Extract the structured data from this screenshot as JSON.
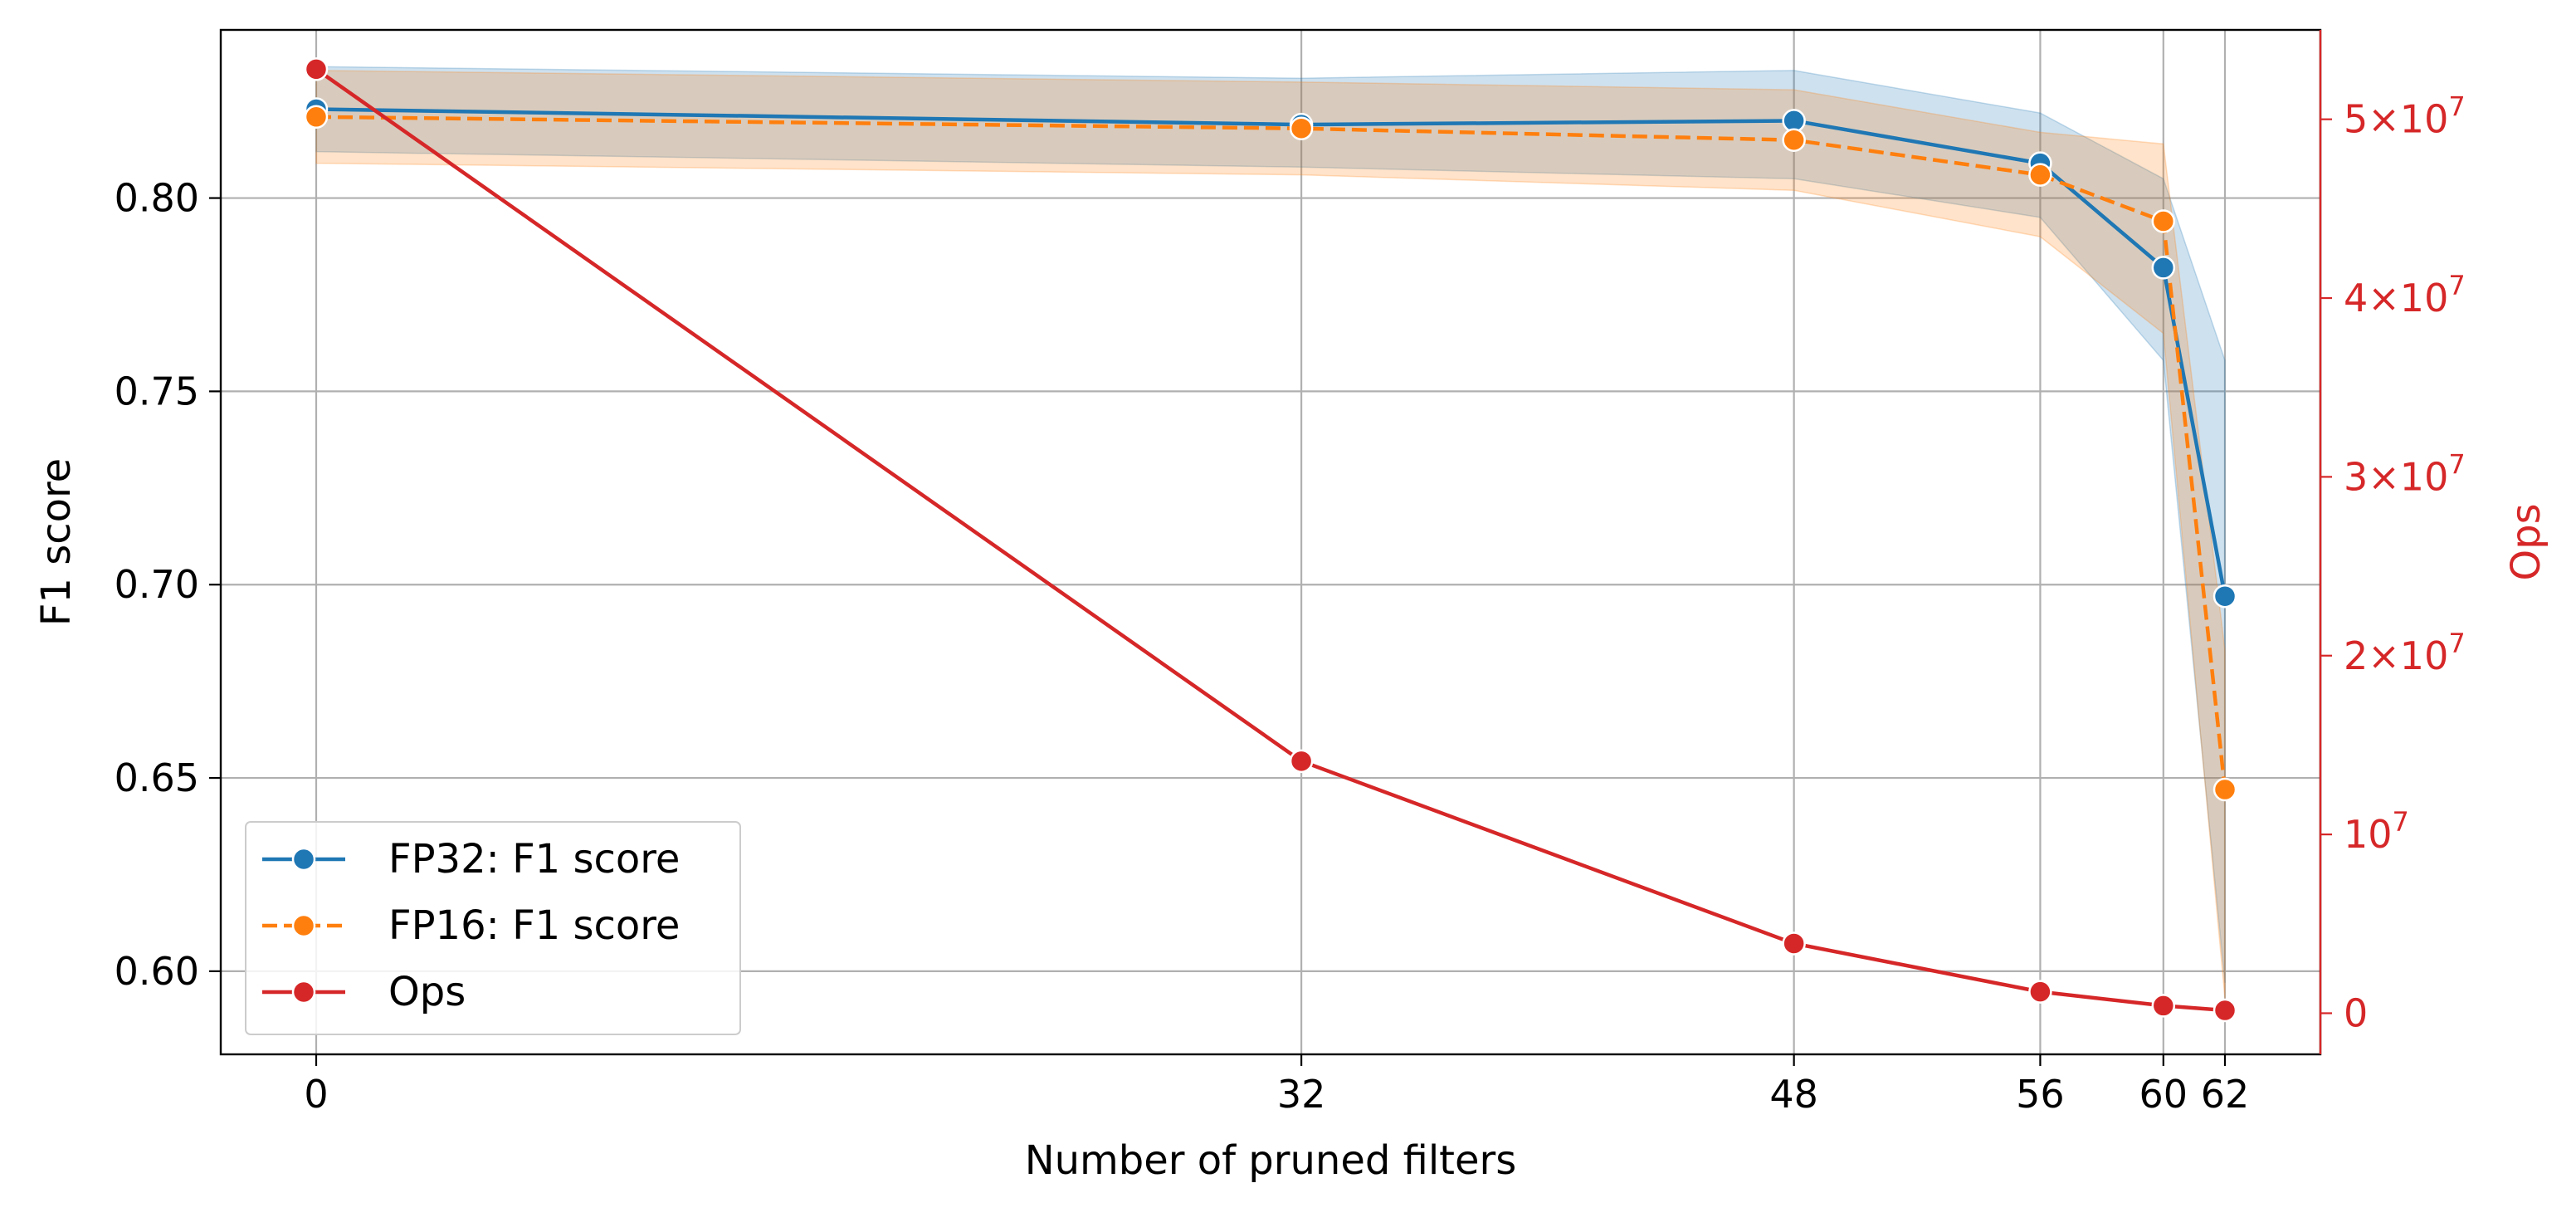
{
  "chart_data": {
    "type": "line",
    "x": [
      0,
      32,
      48,
      56,
      60,
      62
    ],
    "xlabel": "Number of pruned filters",
    "xticks": [
      "0",
      "32",
      "48",
      "56",
      "60",
      "62"
    ],
    "xlim": [
      -3.1,
      65.1
    ],
    "ylabel": "F1 score",
    "ylim": [
      0.5785,
      0.8435
    ],
    "yticks": [
      "0.60",
      "0.65",
      "0.70",
      "0.75",
      "0.80"
    ],
    "ytick_values": [
      0.6,
      0.65,
      0.7,
      0.75,
      0.8
    ],
    "y2label": "Ops",
    "y2lim": [
      -2300000,
      55000000
    ],
    "y2ticks": [
      {
        "value": 0,
        "base": "0",
        "exp": ""
      },
      {
        "value": 10000000,
        "base": "10",
        "exp": "7"
      },
      {
        "value": 20000000,
        "base": "2×10",
        "exp": "7"
      },
      {
        "value": 30000000,
        "base": "3×10",
        "exp": "7"
      },
      {
        "value": 40000000,
        "base": "4×10",
        "exp": "7"
      },
      {
        "value": 50000000,
        "base": "5×10",
        "exp": "7"
      }
    ],
    "grid": true,
    "legend_position": "lower-left",
    "series": [
      {
        "name": "FP32: F1 score",
        "axis": "left",
        "color": "#1f77b4",
        "dash": "solid",
        "values": [
          0.823,
          0.819,
          0.82,
          0.809,
          0.782,
          0.697
        ],
        "band_upper": [
          0.834,
          0.831,
          0.833,
          0.822,
          0.805,
          0.758
        ],
        "band_lower": [
          0.812,
          0.808,
          0.805,
          0.795,
          0.758,
          0.597
        ]
      },
      {
        "name": "FP16: F1 score",
        "axis": "left",
        "color": "#ff7f0e",
        "dash": "dashed",
        "values": [
          0.821,
          0.818,
          0.815,
          0.806,
          0.794,
          0.647
        ],
        "band_upper": [
          0.833,
          0.83,
          0.828,
          0.817,
          0.814,
          0.683
        ],
        "band_lower": [
          0.809,
          0.806,
          0.802,
          0.79,
          0.765,
          0.593
        ]
      },
      {
        "name": "Ops",
        "axis": "right",
        "color": "#d62728",
        "dash": "solid",
        "values": [
          52800000,
          14100000,
          3900000,
          1200000,
          420000,
          160000
        ]
      }
    ]
  },
  "colors": {
    "axis_right": "#d62728",
    "grid": "#b0b0b0",
    "fp32": "#1f77b4",
    "fp16": "#ff7f0e",
    "ops": "#d62728"
  }
}
